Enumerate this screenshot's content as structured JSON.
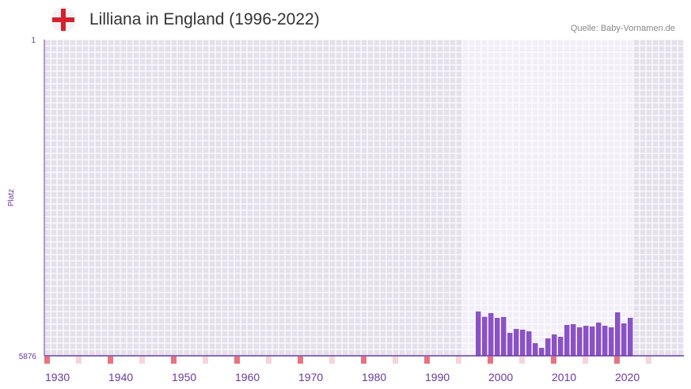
{
  "title": "Lilliana in England (1996-2022)",
  "source": "Quelle: Baby-Vornamen.de",
  "flag_icon": "england-flag-icon",
  "colors": {
    "bar": "#8a52c6",
    "bg": "#e4e0ec",
    "highlight": "#f1eefa",
    "marker": "#e8737e",
    "marker_light": "#f5d5dc",
    "axis": "#6a3aa0"
  },
  "chart_data": {
    "type": "bar",
    "title": "Lilliana in England (1996-2022)",
    "ylabel": "Platz",
    "ylim": [
      5876,
      1
    ],
    "y_ticks": [
      "1",
      "5876"
    ],
    "x_range": [
      1930,
      2028
    ],
    "highlight_range": [
      1996,
      2022
    ],
    "x_ticks": [
      "1930",
      "1940",
      "1950",
      "1960",
      "1970",
      "1980",
      "1990",
      "2000",
      "2010",
      "2020"
    ],
    "x": [
      1998,
      1999,
      2000,
      2001,
      2002,
      2003,
      2004,
      2005,
      2006,
      2007,
      2008,
      2009,
      2010,
      2011,
      2012,
      2013,
      2014,
      2015,
      2016,
      2017,
      2018,
      2019,
      2020,
      2021,
      2022
    ],
    "values": [
      5053,
      5152,
      5083,
      5171,
      5156,
      5450,
      5377,
      5391,
      5421,
      5641,
      5729,
      5553,
      5479,
      5523,
      5303,
      5288,
      5347,
      5318,
      5332,
      5259,
      5318,
      5347,
      5068,
      5274,
      5171
    ]
  }
}
